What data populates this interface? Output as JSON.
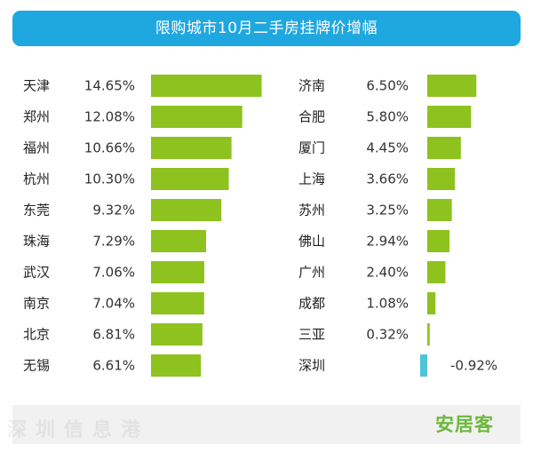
{
  "title": "限购城市10月二手房挂牌价增幅",
  "brand": "安居客",
  "watermark": "深圳信息港",
  "colors": {
    "header": "#1fa7e0",
    "positive": "#8dc21f",
    "negative": "#4fc3d9",
    "brand": "#6bb93b"
  },
  "chart_data": {
    "type": "bar",
    "title": "限购城市10月二手房挂牌价增幅",
    "unit": "%",
    "xlim": [
      -1,
      15
    ],
    "groups": [
      {
        "categories": [
          "天津",
          "郑州",
          "福州",
          "杭州",
          "东莞",
          "珠海",
          "武汉",
          "南京",
          "北京",
          "无锡"
        ],
        "values": [
          14.65,
          12.08,
          10.66,
          10.3,
          9.32,
          7.29,
          7.06,
          7.04,
          6.81,
          6.61
        ],
        "labels": [
          "14.65%",
          "12.08%",
          "10.66%",
          "10.30%",
          "9.32%",
          "7.29%",
          "7.06%",
          "7.04%",
          "6.81%",
          "6.61%"
        ]
      },
      {
        "categories": [
          "济南",
          "合肥",
          "厦门",
          "上海",
          "苏州",
          "佛山",
          "广州",
          "成都",
          "三亚",
          "深圳"
        ],
        "values": [
          6.5,
          5.8,
          4.45,
          3.66,
          3.25,
          2.94,
          2.4,
          1.08,
          0.32,
          -0.92
        ],
        "labels": [
          "6.50%",
          "5.80%",
          "4.45%",
          "3.66%",
          "3.25%",
          "2.94%",
          "2.40%",
          "1.08%",
          "0.32%",
          "-0.92%"
        ]
      }
    ]
  }
}
